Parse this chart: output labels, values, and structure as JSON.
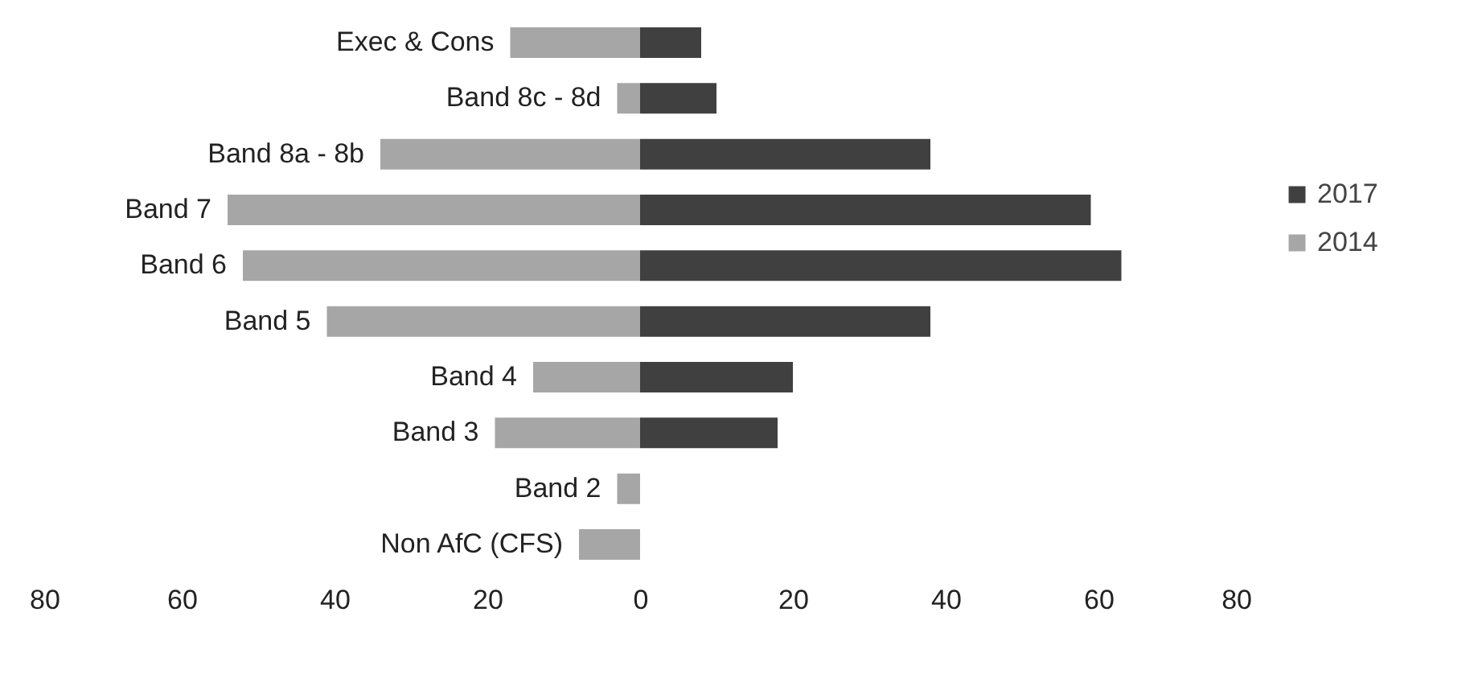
{
  "chart_data": {
    "type": "bar",
    "orientation": "horizontal",
    "stacked": true,
    "categories": [
      "Exec & Cons",
      "Band 8c - 8d",
      "Band 8a - 8b",
      "Band 7",
      "Band 6",
      "Band 5",
      "Band 4",
      "Band 3",
      "Band 2",
      "Non AfC (CFS)"
    ],
    "series": [
      {
        "name": "2017",
        "color": "#404040",
        "values": [
          8,
          10,
          38,
          59,
          63,
          38,
          20,
          18,
          null,
          null
        ]
      },
      {
        "name": "2014",
        "color": "#a6a6a6",
        "values": [
          -17,
          -3,
          -34,
          -54,
          -52,
          -41,
          -14,
          -19,
          -3,
          -8
        ]
      }
    ],
    "xlim": [
      -80,
      80
    ],
    "xticks": [
      {
        "value": -80,
        "label": "80"
      },
      {
        "value": -60,
        "label": "60"
      },
      {
        "value": -40,
        "label": "40"
      },
      {
        "value": -20,
        "label": "20"
      },
      0,
      20,
      40,
      60,
      80
    ],
    "grid": false,
    "legend": "right"
  }
}
